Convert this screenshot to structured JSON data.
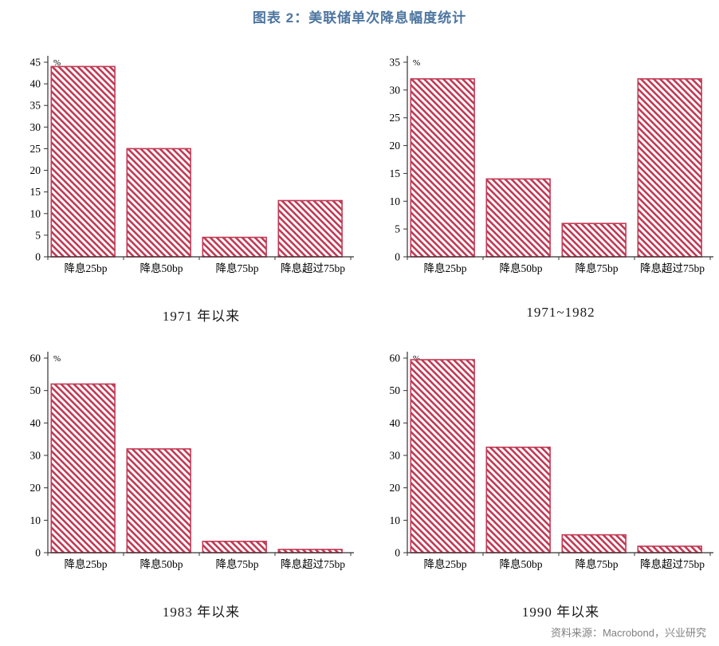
{
  "title": "图表 2：美联储单次降息幅度统计",
  "source": "资料来源：Macrobond，兴业研究",
  "colors": {
    "title": "#4e76a0",
    "bar": "#c23a55",
    "axis": "#333333",
    "text": "#000000",
    "source": "#808080"
  },
  "chart_data": [
    {
      "type": "bar",
      "title": "1971 年以来",
      "categories": [
        "降息25bp",
        "降息50bp",
        "降息75bp",
        "降息超过75bp"
      ],
      "values": [
        44,
        25,
        4.5,
        13
      ],
      "xlabel": "",
      "ylabel": "%",
      "ylim": [
        0,
        45
      ],
      "ytick_step": 5,
      "grid": false,
      "legend": "none",
      "hatch": "\\"
    },
    {
      "type": "bar",
      "title": "1971~1982",
      "categories": [
        "降息25bp",
        "降息50bp",
        "降息75bp",
        "降息超过75bp"
      ],
      "values": [
        32,
        14,
        6,
        32
      ],
      "xlabel": "",
      "ylabel": "%",
      "ylim": [
        0,
        35
      ],
      "ytick_step": 5,
      "grid": false,
      "legend": "none",
      "hatch": "\\"
    },
    {
      "type": "bar",
      "title": "1983 年以来",
      "categories": [
        "降息25bp",
        "降息50bp",
        "降息75bp",
        "降息超过75bp"
      ],
      "values": [
        52,
        32,
        3.5,
        1
      ],
      "xlabel": "",
      "ylabel": "%",
      "ylim": [
        0,
        60
      ],
      "ytick_step": 10,
      "grid": false,
      "legend": "none",
      "hatch": "\\"
    },
    {
      "type": "bar",
      "title": "1990 年以来",
      "categories": [
        "降息25bp",
        "降息50bp",
        "降息75bp",
        "降息超过75bp"
      ],
      "values": [
        59.5,
        32.5,
        5.5,
        2
      ],
      "xlabel": "",
      "ylabel": "%",
      "ylim": [
        0,
        60
      ],
      "ytick_step": 10,
      "grid": false,
      "legend": "none",
      "hatch": "\\"
    }
  ]
}
